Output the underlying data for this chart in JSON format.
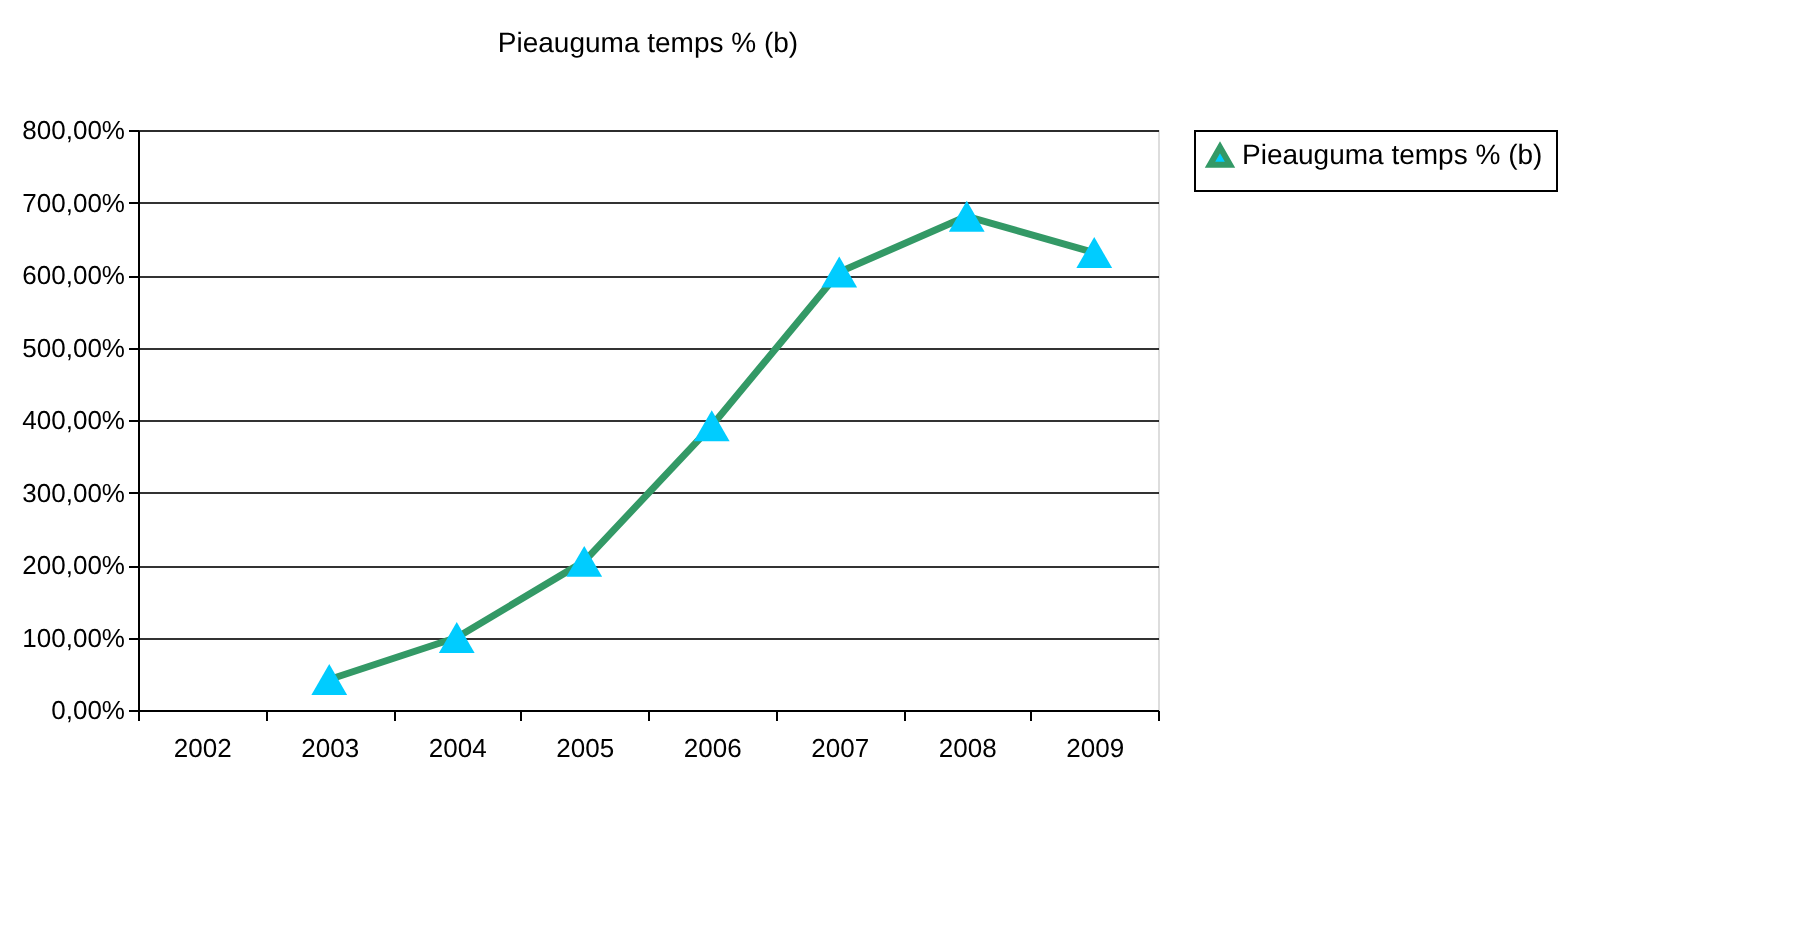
{
  "chart_data": {
    "type": "line",
    "title": "Pieauguma temps % (b)",
    "categories": [
      "2002",
      "2003",
      "2004",
      "2005",
      "2006",
      "2007",
      "2008",
      "2009"
    ],
    "series": [
      {
        "name": "Pieauguma temps % (b)",
        "color": "#339966",
        "colors": [
          "#00ccff",
          "#00ccff",
          "#00ccff",
          "#00ccff",
          "#00ccff",
          "#00ccff",
          "#00ccff",
          "#00ccff"
        ],
        "values": [
          null,
          42,
          100,
          205,
          392,
          604,
          681,
          631
        ]
      }
    ],
    "ylim": [
      0,
      800
    ],
    "yticks": [
      {
        "value": 0,
        "label": "0,00%"
      },
      {
        "value": 100,
        "label": "100,00%"
      },
      {
        "value": 200,
        "label": "200,00%"
      },
      {
        "value": 300,
        "label": "300,00%"
      },
      {
        "value": 400,
        "label": "400,00%"
      },
      {
        "value": 500,
        "label": "500,00%"
      },
      {
        "value": 600,
        "label": "600,00%"
      },
      {
        "value": 700,
        "label": "700,00%"
      },
      {
        "value": 800,
        "label": "800,00%"
      }
    ],
    "grid": "y",
    "legend": "right",
    "marker": "triangle",
    "line_style": "solid"
  }
}
